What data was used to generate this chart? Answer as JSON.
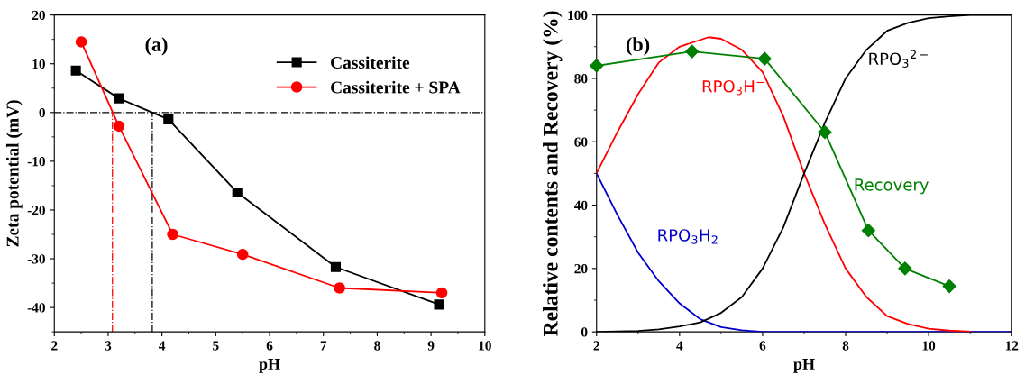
{
  "chart_data": [
    {
      "type": "line",
      "title": "(a)",
      "xlabel": "pH",
      "ylabel": "Zeta potential (mV)",
      "xlim": [
        2,
        10
      ],
      "ylim": [
        -45,
        20
      ],
      "xticks": [
        2,
        3,
        4,
        5,
        6,
        7,
        8,
        9,
        10
      ],
      "yticks": [
        -40,
        -30,
        -20,
        -10,
        0,
        10,
        20
      ],
      "legend": "top right",
      "grid": false,
      "series": [
        {
          "name": "Cassiterite",
          "color": "#000000",
          "marker": "square",
          "x": [
            2.4,
            3.2,
            4.12,
            5.4,
            7.23,
            9.15
          ],
          "values": [
            8.6,
            2.9,
            -1.4,
            -16.4,
            -31.7,
            -39.4
          ]
        },
        {
          "name": "Cassiterite + SPA",
          "color": "#ff0000",
          "marker": "circle",
          "x": [
            2.5,
            3.2,
            4.2,
            5.5,
            7.3,
            9.2
          ],
          "values": [
            14.5,
            -2.8,
            -25,
            -29.1,
            -36,
            -37
          ]
        }
      ],
      "ref_lines": [
        {
          "axis": "y",
          "value": 0,
          "color": "#000000",
          "line_style": "dashdot"
        },
        {
          "axis": "x",
          "value": 3.08,
          "color": "#ff0000",
          "line_style": "dashdot"
        },
        {
          "axis": "x",
          "value": 3.82,
          "color": "#000000",
          "line_style": "dashdot"
        }
      ]
    },
    {
      "type": "line",
      "title": "(b)",
      "xlabel": "pH",
      "ylabel": "Relative contents and Recovery (%)",
      "xlim": [
        2,
        12
      ],
      "ylim": [
        0,
        100
      ],
      "xticks": [
        2,
        4,
        6,
        8,
        10,
        12
      ],
      "yticks": [
        0,
        20,
        40,
        60,
        80,
        100
      ],
      "legend": false,
      "grid": false,
      "series": [
        {
          "name": "RPO$_{3}$H$_{2}$",
          "color": "#0000cc",
          "marker": "none",
          "x": [
            2,
            2.5,
            3,
            3.5,
            4,
            4.5,
            5,
            5.5,
            6,
            7,
            8,
            9,
            10,
            11,
            12
          ],
          "values": [
            50,
            37,
            25,
            16,
            9,
            4,
            1.5,
            0.5,
            0,
            0,
            0,
            0,
            0,
            0,
            0
          ]
        },
        {
          "name": "RPO$_{3}$H$^{−}$",
          "color": "#ff0000",
          "marker": "none",
          "x": [
            2,
            2.5,
            3,
            3.5,
            4,
            4.7,
            5,
            5.5,
            6,
            6.5,
            7,
            7.5,
            8,
            8.5,
            9,
            9.5,
            10,
            10.5,
            11
          ],
          "values": [
            50,
            63,
            75,
            85,
            90,
            93,
            92.5,
            89,
            82,
            68,
            50,
            34,
            20,
            11,
            5,
            2.5,
            1,
            0.4,
            0.1
          ]
        },
        {
          "name": "RPO$_{3}$$^{2−}$",
          "color": "#000000",
          "marker": "none",
          "x": [
            2,
            3,
            3.5,
            4,
            4.5,
            5,
            5.5,
            6,
            6.5,
            7,
            7.5,
            8,
            8.5,
            9,
            9.5,
            10,
            10.5,
            11,
            12
          ],
          "values": [
            0,
            0.3,
            0.8,
            1.7,
            3,
            6,
            11,
            20,
            33,
            50,
            66,
            80,
            89,
            95,
            97.5,
            99,
            99.6,
            100,
            100
          ]
        },
        {
          "name": "Recovery",
          "color": "#008000",
          "marker": "diamond",
          "x": [
            2,
            4.3,
            6.05,
            7.5,
            8.55,
            9.43,
            10.5
          ],
          "values": [
            84,
            88.5,
            86.2,
            63,
            32,
            20,
            14.4
          ]
        }
      ]
    }
  ]
}
